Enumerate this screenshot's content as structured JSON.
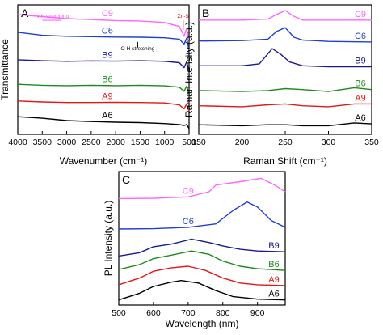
{
  "chart_data": [
    {
      "panel": "A",
      "type": "line",
      "xlabel": "Wavenumber (cm⁻¹)",
      "ylabel": "Transmittance",
      "xlim": [
        4000,
        500
      ],
      "x_reversed": true,
      "xticks": [
        4000,
        3500,
        3000,
        2500,
        2000,
        1500,
        1000,
        500
      ],
      "grid": false,
      "annotations": [
        {
          "text": "N-H stretching",
          "x": 3300,
          "color": "#ff55ff"
        },
        {
          "text": "Zn-S",
          "x": 620,
          "color": "#e00000"
        },
        {
          "text": "O-H stretching",
          "x": 1550,
          "color": "#000000"
        }
      ],
      "series": [
        {
          "name": "C9",
          "color": "#ff66ff",
          "x": [
            4000,
            3500,
            3000,
            2500,
            2000,
            1500,
            1000,
            700,
            600,
            550,
            500
          ],
          "y": [
            6.1,
            6.0,
            5.9,
            5.85,
            5.8,
            5.78,
            5.7,
            5.5,
            5.0,
            5.4,
            4.8
          ]
        },
        {
          "name": "C6",
          "color": "#1f3fd0",
          "x": [
            4000,
            3500,
            3000,
            2500,
            2000,
            1500,
            1000,
            700,
            600,
            550,
            500
          ],
          "y": [
            5.2,
            5.05,
            5.0,
            4.98,
            4.96,
            4.95,
            4.92,
            4.85,
            4.6,
            4.9,
            4.3
          ]
        },
        {
          "name": "B9",
          "color": "#1a1a8c",
          "x": [
            4000,
            3500,
            3000,
            2500,
            2000,
            1500,
            1000,
            700,
            600,
            550,
            500
          ],
          "y": [
            3.8,
            3.75,
            3.72,
            3.74,
            3.73,
            3.75,
            3.72,
            3.65,
            3.4,
            3.7,
            3.2
          ]
        },
        {
          "name": "B6",
          "color": "#1e8a1e",
          "x": [
            4000,
            3500,
            3000,
            2500,
            2000,
            1500,
            1000,
            700,
            600,
            550,
            500
          ],
          "y": [
            2.55,
            2.5,
            2.48,
            2.5,
            2.48,
            2.5,
            2.47,
            2.4,
            2.2,
            2.45,
            2.0
          ]
        },
        {
          "name": "A9",
          "color": "#e01818",
          "x": [
            4000,
            3500,
            3000,
            2500,
            2000,
            1500,
            1000,
            700,
            600,
            550,
            500
          ],
          "y": [
            1.7,
            1.65,
            1.62,
            1.62,
            1.63,
            1.62,
            1.6,
            1.5,
            1.3,
            1.55,
            1.2
          ]
        },
        {
          "name": "A6",
          "color": "#000000",
          "x": [
            4000,
            3500,
            3000,
            2500,
            2000,
            1500,
            1000,
            700,
            600,
            550,
            500
          ],
          "y": [
            0.9,
            0.82,
            0.7,
            0.65,
            0.62,
            0.6,
            0.55,
            0.5,
            0.45,
            0.5,
            0.3
          ]
        }
      ]
    },
    {
      "panel": "B",
      "type": "line",
      "xlabel": "Raman Shift (cm⁻¹)",
      "ylabel": "Raman Intensity (a.u.)",
      "xlim": [
        150,
        350
      ],
      "xticks": [
        150,
        200,
        250,
        300,
        350
      ],
      "grid": false,
      "series": [
        {
          "name": "C9",
          "color": "#ff66ff",
          "x": [
            150,
            200,
            230,
            240,
            250,
            260,
            270,
            300,
            350
          ],
          "y": [
            6.0,
            6.0,
            6.05,
            6.3,
            6.5,
            6.2,
            6.0,
            6.0,
            6.0
          ]
        },
        {
          "name": "C6",
          "color": "#1f3fd0",
          "x": [
            150,
            200,
            230,
            240,
            250,
            260,
            270,
            300,
            350
          ],
          "y": [
            4.9,
            4.92,
            5.0,
            5.4,
            5.6,
            5.1,
            4.95,
            4.88,
            4.85
          ]
        },
        {
          "name": "B9",
          "color": "#1a1a8c",
          "x": [
            150,
            200,
            220,
            235,
            245,
            255,
            270,
            300,
            350
          ],
          "y": [
            3.6,
            3.6,
            3.7,
            4.5,
            4.2,
            3.8,
            3.6,
            3.55,
            3.55
          ]
        },
        {
          "name": "B6",
          "color": "#1e8a1e",
          "x": [
            150,
            200,
            230,
            250,
            270,
            300,
            330,
            350
          ],
          "y": [
            2.3,
            2.25,
            2.3,
            2.4,
            2.35,
            2.25,
            2.45,
            2.35
          ]
        },
        {
          "name": "A9",
          "color": "#e01818",
          "x": [
            150,
            200,
            230,
            250,
            270,
            300,
            330,
            350
          ],
          "y": [
            1.5,
            1.45,
            1.55,
            1.6,
            1.5,
            1.45,
            1.6,
            1.6
          ]
        },
        {
          "name": "A6",
          "color": "#000000",
          "x": [
            150,
            200,
            230,
            250,
            270,
            300,
            330,
            350
          ],
          "y": [
            0.5,
            0.45,
            0.5,
            0.5,
            0.45,
            0.45,
            0.6,
            0.55
          ]
        }
      ]
    },
    {
      "panel": "C",
      "type": "line",
      "xlabel": "Wavelength (nm)",
      "ylabel": "PL Intensity (a.u.)",
      "xlim": [
        500,
        980
      ],
      "xticks": [
        500,
        600,
        700,
        800,
        900
      ],
      "grid": false,
      "series": [
        {
          "name": "C9",
          "color": "#ff66ff",
          "x": [
            500,
            600,
            700,
            760,
            780,
            850,
            910,
            950,
            980
          ],
          "y": [
            6.3,
            6.32,
            6.4,
            6.7,
            7.1,
            7.3,
            7.5,
            7.1,
            6.7
          ]
        },
        {
          "name": "C6",
          "color": "#1f3fd0",
          "x": [
            500,
            600,
            700,
            780,
            830,
            870,
            900,
            940,
            980
          ],
          "y": [
            4.5,
            4.52,
            4.6,
            4.8,
            5.6,
            6.1,
            5.8,
            5.0,
            4.6
          ]
        },
        {
          "name": "B9",
          "color": "#1a1a8c",
          "x": [
            500,
            560,
            600,
            650,
            710,
            760,
            800,
            850,
            900,
            980
          ],
          "y": [
            2.9,
            3.1,
            3.45,
            3.6,
            3.9,
            3.7,
            3.5,
            3.3,
            3.2,
            3.15
          ]
        },
        {
          "name": "B6",
          "color": "#1e8a1e",
          "x": [
            500,
            560,
            600,
            650,
            710,
            760,
            800,
            850,
            900,
            980
          ],
          "y": [
            2.1,
            2.4,
            2.75,
            2.95,
            3.2,
            3.0,
            2.6,
            2.3,
            2.15,
            2.05
          ]
        },
        {
          "name": "A9",
          "color": "#e01818",
          "x": [
            500,
            560,
            600,
            650,
            700,
            750,
            800,
            850,
            900,
            980
          ],
          "y": [
            1.2,
            1.6,
            2.0,
            2.2,
            2.3,
            2.05,
            1.6,
            1.3,
            1.2,
            1.15
          ]
        },
        {
          "name": "A6",
          "color": "#000000",
          "x": [
            500,
            560,
            600,
            650,
            680,
            730,
            780,
            830,
            900,
            980
          ],
          "y": [
            0.3,
            0.7,
            1.1,
            1.35,
            1.45,
            1.3,
            0.85,
            0.5,
            0.35,
            0.3
          ]
        }
      ]
    }
  ]
}
